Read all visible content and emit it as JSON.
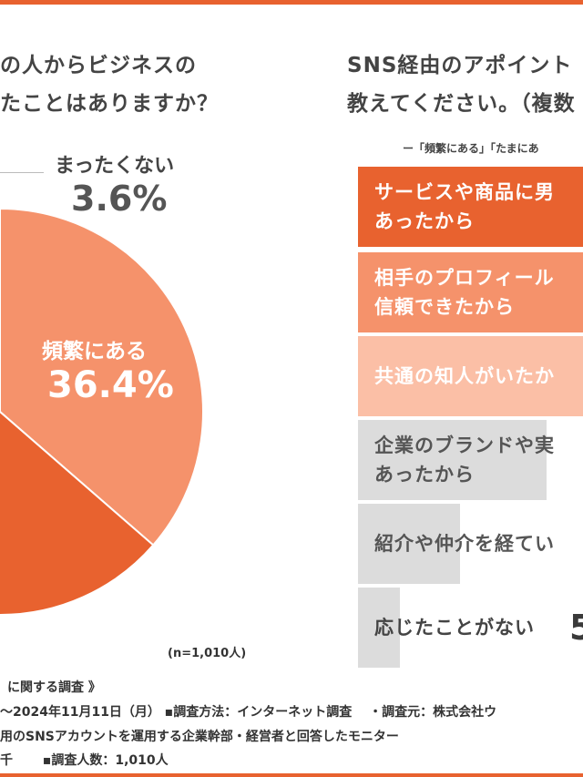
{
  "left_chart": {
    "question_line1": "の人からビジネスの",
    "question_line2": "たことはありますか？",
    "sample_note": "(n=1,010人)"
  },
  "right_chart": {
    "question_line1": "SNS経由のアポイント",
    "question_line2": "教えてください。（複数",
    "legend_text": "ー「頻繁にある」「たまにあ"
  },
  "footer": {
    "line1": "に関する調査 》",
    "line2": "〜2024年11月11日（月） ▪調査方法：インターネット調査　 ・調査元：株式会社ウ",
    "line3": "用のSNSアカウントを運用する企業幹部・経営者と回答したモニター",
    "line4": "千　　 ▪調査人数：1,010人"
  },
  "chart_data": [
    {
      "type": "pie",
      "slices": [
        {
          "label": "頻繁にある",
          "value": 36.4,
          "color": "#f5926b"
        },
        {
          "label": "",
          "value": null,
          "color": "#e8622f"
        },
        {
          "label": "まったくない",
          "value": 3.6,
          "color": "#b3b3b3"
        }
      ],
      "visible_labels": {
        "frequent_label": "頻繁にある",
        "frequent_value": "36.4%",
        "none_label": "まったくない",
        "none_value": "3.6%"
      }
    },
    {
      "type": "bar",
      "orientation": "horizontal",
      "legend": "ー「頻繁にある」「たまにあ",
      "bars": [
        {
          "label": "サービスや商品に男\nあったから",
          "color": "#e8622f",
          "text_color": "#ffffff",
          "value": null
        },
        {
          "label": "相手のプロフィール\n信頼できたから",
          "color": "#f5926b",
          "text_color": "#ffffff",
          "value": null
        },
        {
          "label": "共通の知人がいたか",
          "color": "#fbbfa6",
          "text_color": "#ffffff",
          "value": null
        },
        {
          "label": "企業のブランドや実\nあったから",
          "color": "#dcdcdc",
          "text_color": "#555555",
          "value": null
        },
        {
          "label": "紹介や仲介を経てい",
          "color": "#dcdcdc",
          "text_color": "#555555",
          "value": null
        },
        {
          "label": "応じたことがない",
          "color": "#dcdcdc",
          "text_color": "#444444",
          "value": null,
          "value_text": "5"
        }
      ]
    }
  ]
}
